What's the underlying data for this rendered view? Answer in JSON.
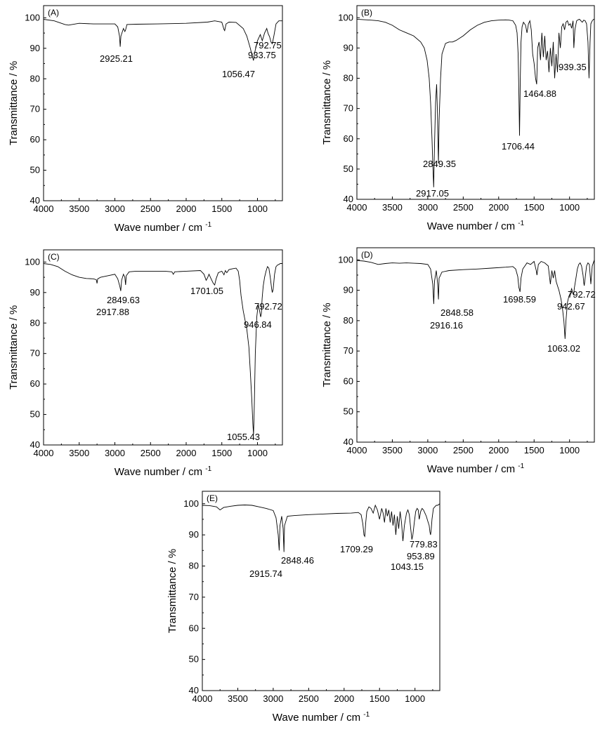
{
  "figure": {
    "x_axis_title": "Wave number / cm",
    "x_axis_exponent": "-1",
    "y_axis_title": "Transmittance / %"
  },
  "chart_data": [
    {
      "type": "line",
      "panel_label": "(A)",
      "xlabel": "Wave number / cm-1",
      "ylabel": "Transmittance / %",
      "xlim": [
        4000,
        650
      ],
      "x_reversed": true,
      "ylim": [
        40,
        104
      ],
      "x_ticks": [
        4000,
        3500,
        3000,
        2500,
        2000,
        1500,
        1000
      ],
      "y_ticks": [
        40,
        50,
        60,
        70,
        80,
        90,
        100
      ],
      "series": [
        {
          "x": [
            4000,
            3850,
            3700,
            3650,
            3500,
            3300,
            3100,
            3000,
            2960,
            2935,
            2925,
            2915,
            2880,
            2860,
            2850,
            2830,
            2700,
            2400,
            2000,
            1700,
            1600,
            1500,
            1470,
            1460,
            1440,
            1400,
            1300,
            1200,
            1150,
            1100,
            1080,
            1056,
            1040,
            1000,
            960,
            933,
            900,
            870,
            850,
            830,
            810,
            792,
            770,
            740,
            700,
            650
          ],
          "y": [
            99.5,
            99.0,
            97.8,
            97.6,
            98.2,
            98.0,
            98.0,
            98.0,
            97.0,
            94.0,
            90.5,
            94.0,
            96.5,
            95.5,
            96.0,
            97.8,
            97.9,
            98.0,
            98.2,
            98.6,
            99.0,
            98.6,
            96.2,
            95.8,
            98.0,
            98.6,
            98.5,
            96.5,
            94.0,
            90.0,
            88.0,
            86.0,
            88.5,
            92.5,
            94.5,
            92.5,
            95.0,
            96.5,
            94.8,
            93.8,
            92.0,
            91.5,
            94.0,
            98.0,
            99.0,
            99.0
          ]
        }
      ],
      "annotations": [
        {
          "text": "2925.21"
        },
        {
          "text": "1056.47"
        },
        {
          "text": "933.75"
        },
        {
          "text": "792.75"
        }
      ]
    },
    {
      "type": "line",
      "panel_label": "(B)",
      "xlabel": "Wave number / cm-1",
      "ylabel": "Transmittance / %",
      "xlim": [
        4000,
        650
      ],
      "x_reversed": true,
      "ylim": [
        40,
        104
      ],
      "x_ticks": [
        4000,
        3500,
        3000,
        2500,
        2000,
        1500,
        1000
      ],
      "y_ticks": [
        40,
        50,
        60,
        70,
        80,
        90,
        100
      ],
      "series": [
        {
          "x": [
            4000,
            3800,
            3700,
            3600,
            3500,
            3400,
            3300,
            3200,
            3100,
            3050,
            3010,
            2980,
            2960,
            2940,
            2930,
            2917,
            2905,
            2890,
            2875,
            2865,
            2857,
            2849,
            2840,
            2820,
            2800,
            2750,
            2700,
            2650,
            2600,
            2500,
            2400,
            2300,
            2200,
            2100,
            2000,
            1900,
            1850,
            1800,
            1760,
            1740,
            1725,
            1715,
            1706,
            1695,
            1685,
            1670,
            1650,
            1620,
            1600,
            1580,
            1560,
            1540,
            1520,
            1500,
            1480,
            1464,
            1450,
            1430,
            1410,
            1390,
            1370,
            1350,
            1330,
            1310,
            1290,
            1270,
            1250,
            1230,
            1210,
            1190,
            1170,
            1150,
            1130,
            1110,
            1090,
            1070,
            1050,
            1030,
            1010,
            990,
            970,
            950,
            939,
            925,
            900,
            880,
            860,
            840,
            820,
            800,
            780,
            760,
            740,
            725,
            710,
            700,
            680,
            660,
            650
          ],
          "y": [
            99.5,
            99.2,
            99.0,
            98.5,
            97.5,
            96.0,
            95.0,
            94.0,
            92.0,
            90.0,
            86.0,
            80.0,
            72.0,
            60.0,
            52.0,
            44.0,
            58.0,
            72.0,
            78.0,
            70.0,
            60.0,
            52.0,
            66.0,
            80.0,
            88.0,
            91.5,
            92.0,
            92.0,
            92.5,
            94.0,
            96.0,
            97.5,
            98.5,
            99.0,
            99.2,
            99.3,
            99.2,
            99.0,
            97.5,
            95.0,
            88.0,
            76.0,
            61.0,
            80.0,
            92.0,
            97.0,
            98.5,
            97.5,
            95.0,
            98.0,
            99.0,
            96.0,
            88.0,
            85.0,
            80.0,
            78.0,
            90.0,
            92.0,
            86.0,
            95.0,
            87.0,
            94.0,
            86.0,
            89.0,
            82.0,
            90.0,
            84.0,
            92.0,
            80.0,
            88.0,
            82.0,
            95.0,
            90.0,
            97.0,
            98.0,
            96.0,
            98.5,
            99.0,
            97.5,
            98.0,
            96.5,
            99.0,
            90.0,
            96.0,
            99.0,
            99.3,
            99.5,
            99.0,
            98.5,
            99.2,
            99.0,
            98.0,
            92.0,
            80.0,
            92.0,
            98.0,
            99.0,
            99.5,
            99.5
          ]
        }
      ],
      "annotations": [
        {
          "text": "2849.35"
        },
        {
          "text": "2917.05"
        },
        {
          "text": "1706.44"
        },
        {
          "text": "1464.88"
        },
        {
          "text": "939.35"
        }
      ]
    },
    {
      "type": "line",
      "panel_label": "(C)",
      "xlabel": "Wave number / cm-1",
      "ylabel": "Transmittance / %",
      "xlim": [
        4000,
        650
      ],
      "x_reversed": true,
      "ylim": [
        40,
        104
      ],
      "x_ticks": [
        4000,
        3500,
        3000,
        2500,
        2000,
        1500,
        1000
      ],
      "y_ticks": [
        40,
        50,
        60,
        70,
        80,
        90,
        100
      ],
      "series": [
        {
          "x": [
            4000,
            3900,
            3800,
            3700,
            3600,
            3500,
            3400,
            3300,
            3260,
            3250,
            3240,
            3200,
            3100,
            3000,
            2960,
            2930,
            2917,
            2905,
            2880,
            2860,
            2849,
            2840,
            2800,
            2700,
            2500,
            2300,
            2200,
            2180,
            2160,
            2000,
            1800,
            1750,
            1720,
            1701,
            1680,
            1650,
            1620,
            1600,
            1580,
            1550,
            1500,
            1470,
            1450,
            1430,
            1400,
            1350,
            1300,
            1270,
            1250,
            1230,
            1200,
            1150,
            1120,
            1100,
            1080,
            1065,
            1055,
            1045,
            1030,
            1010,
            990,
            970,
            955,
            946,
            935,
            920,
            900,
            880,
            860,
            840,
            820,
            800,
            792,
            780,
            760,
            740,
            720,
            700,
            680,
            650
          ],
          "y": [
            99.5,
            99.2,
            98.5,
            97.0,
            95.8,
            95.0,
            94.6,
            94.5,
            94.2,
            93.0,
            94.5,
            95.0,
            95.5,
            96.0,
            94.5,
            92.0,
            90.5,
            94.0,
            96.0,
            95.0,
            92.5,
            95.5,
            96.8,
            97.0,
            97.0,
            97.0,
            96.8,
            96.0,
            96.8,
            97.0,
            97.2,
            96.0,
            94.0,
            94.8,
            96.0,
            94.5,
            93.0,
            92.5,
            94.5,
            96.5,
            97.0,
            95.8,
            97.2,
            96.5,
            97.5,
            97.8,
            98.0,
            97.0,
            94.0,
            89.0,
            84.0,
            78.0,
            72.0,
            64.0,
            55.0,
            47.0,
            43.5,
            52.0,
            70.0,
            82.0,
            86.0,
            84.0,
            82.0,
            83.0,
            88.0,
            92.0,
            95.0,
            97.0,
            98.5,
            98.0,
            95.0,
            91.0,
            90.0,
            91.0,
            96.0,
            98.5,
            99.0,
            99.2,
            99.5,
            99.5
          ]
        }
      ],
      "annotations": [
        {
          "text": "2849.63"
        },
        {
          "text": "2917.88"
        },
        {
          "text": "1701.05"
        },
        {
          "text": "792.72"
        },
        {
          "text": "946.84"
        },
        {
          "text": "1055.43"
        }
      ]
    },
    {
      "type": "line",
      "panel_label": "(D)",
      "xlabel": "Wave number / cm-1",
      "ylabel": "Transmittance / %",
      "xlim": [
        4000,
        650
      ],
      "x_reversed": true,
      "ylim": [
        40,
        104
      ],
      "x_ticks": [
        4000,
        3500,
        3000,
        2500,
        2000,
        1500,
        1000
      ],
      "y_ticks": [
        40,
        50,
        60,
        70,
        80,
        90,
        100
      ],
      "series": [
        {
          "x": [
            4000,
            3900,
            3800,
            3700,
            3600,
            3500,
            3400,
            3300,
            3200,
            3100,
            3000,
            2960,
            2930,
            2916,
            2905,
            2880,
            2860,
            2849,
            2840,
            2800,
            2700,
            2500,
            2300,
            2100,
            1900,
            1800,
            1760,
            1730,
            1715,
            1699,
            1685,
            1660,
            1630,
            1600,
            1550,
            1500,
            1470,
            1460,
            1440,
            1400,
            1350,
            1300,
            1290,
            1270,
            1250,
            1230,
            1210,
            1190,
            1170,
            1150,
            1120,
            1100,
            1080,
            1063,
            1050,
            1030,
            1010,
            990,
            970,
            955,
            943,
            930,
            910,
            890,
            870,
            850,
            830,
            810,
            800,
            793,
            780,
            760,
            740,
            720,
            700,
            680,
            650
          ],
          "y": [
            99.8,
            99.6,
            99.2,
            98.5,
            98.8,
            99.0,
            98.9,
            99.0,
            98.9,
            98.8,
            98.5,
            97.0,
            92.0,
            85.5,
            93.0,
            96.5,
            92.0,
            87.0,
            94.0,
            96.0,
            96.5,
            96.8,
            97.0,
            97.3,
            97.6,
            97.8,
            97.0,
            94.5,
            91.0,
            89.5,
            94.0,
            97.0,
            98.0,
            99.0,
            98.5,
            99.5,
            96.5,
            95.0,
            98.5,
            99.5,
            99.0,
            98.0,
            96.0,
            92.0,
            96.5,
            94.0,
            96.5,
            93.0,
            91.5,
            90.0,
            87.0,
            84.0,
            80.0,
            74.0,
            80.0,
            86.0,
            88.0,
            89.0,
            90.5,
            89.0,
            88.5,
            91.0,
            94.0,
            97.0,
            98.5,
            99.0,
            98.0,
            95.0,
            92.5,
            91.5,
            94.0,
            98.0,
            99.0,
            98.5,
            92.0,
            98.0,
            100.0
          ]
        }
      ],
      "annotations": [
        {
          "text": "2848.58"
        },
        {
          "text": "2916.16"
        },
        {
          "text": "1698.59"
        },
        {
          "text": "942.67"
        },
        {
          "text": "792.72"
        },
        {
          "text": "1063.02"
        }
      ]
    },
    {
      "type": "line",
      "panel_label": "(E)",
      "xlabel": "Wave number / cm-1",
      "ylabel": "Transmittance / %",
      "xlim": [
        4000,
        650
      ],
      "x_reversed": true,
      "ylim": [
        40,
        104
      ],
      "x_ticks": [
        4000,
        3500,
        3000,
        2500,
        2000,
        1500,
        1000
      ],
      "y_ticks": [
        40,
        50,
        60,
        70,
        80,
        90,
        100
      ],
      "series": [
        {
          "x": [
            4000,
            3900,
            3800,
            3750,
            3700,
            3600,
            3500,
            3400,
            3300,
            3200,
            3100,
            3000,
            2960,
            2930,
            2916,
            2905,
            2880,
            2860,
            2848,
            2840,
            2800,
            2700,
            2500,
            2300,
            2100,
            1900,
            1800,
            1760,
            1735,
            1720,
            1709,
            1695,
            1680,
            1650,
            1620,
            1590,
            1560,
            1530,
            1500,
            1470,
            1450,
            1430,
            1410,
            1390,
            1370,
            1350,
            1330,
            1310,
            1290,
            1270,
            1250,
            1230,
            1210,
            1190,
            1170,
            1150,
            1120,
            1100,
            1080,
            1060,
            1043,
            1030,
            1010,
            990,
            970,
            954,
            940,
            920,
            900,
            880,
            860,
            840,
            820,
            800,
            790,
            780,
            770,
            760,
            740,
            720,
            700,
            680,
            650
          ],
          "y": [
            99.5,
            99.4,
            99.0,
            98.0,
            98.8,
            99.2,
            99.5,
            99.6,
            99.5,
            99.0,
            98.5,
            97.8,
            95.5,
            90.0,
            85.0,
            93.0,
            96.0,
            92.0,
            84.5,
            93.0,
            96.0,
            96.2,
            96.5,
            96.7,
            96.9,
            97.0,
            97.2,
            96.5,
            93.5,
            90.0,
            89.5,
            94.0,
            97.5,
            99.0,
            98.5,
            97.0,
            99.5,
            98.0,
            95.0,
            98.5,
            97.0,
            94.0,
            98.5,
            96.0,
            98.0,
            94.0,
            97.5,
            93.0,
            96.5,
            90.0,
            96.0,
            92.0,
            97.5,
            94.0,
            88.0,
            93.0,
            97.0,
            98.0,
            96.5,
            92.0,
            88.5,
            90.0,
            94.0,
            97.5,
            98.5,
            98.0,
            95.0,
            97.5,
            98.5,
            98.0,
            97.0,
            96.0,
            94.5,
            93.0,
            91.0,
            90.0,
            92.0,
            95.0,
            98.5,
            99.0,
            99.5,
            99.5,
            100.0
          ]
        }
      ],
      "annotations": [
        {
          "text": "2848.46"
        },
        {
          "text": "2915.74"
        },
        {
          "text": "1709.29"
        },
        {
          "text": "779.83"
        },
        {
          "text": "953.89"
        },
        {
          "text": "1043.15"
        }
      ]
    }
  ]
}
